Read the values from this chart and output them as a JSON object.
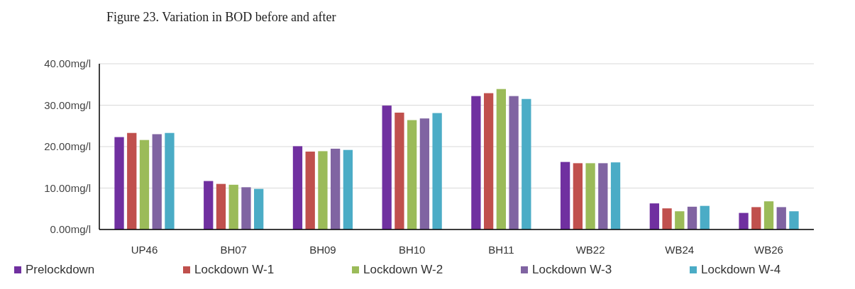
{
  "chart_data": {
    "type": "bar",
    "title": "Figure 23.   Variation in BOD before and after",
    "categories": [
      "UP46",
      "BH07",
      "BH09",
      "BH10",
      "BH11",
      "WB22",
      "WB24",
      "WB26"
    ],
    "series": [
      {
        "name": "Prelockdown",
        "color": "#7030a0",
        "values": [
          22.3,
          11.7,
          20.1,
          29.9,
          32.2,
          16.3,
          6.3,
          4.0
        ]
      },
      {
        "name": "Lockdown W-1",
        "color": "#c0504d",
        "values": [
          23.3,
          11.0,
          18.8,
          28.2,
          32.9,
          16.0,
          5.1,
          5.4
        ]
      },
      {
        "name": "Lockdown W-2",
        "color": "#9bbb59",
        "values": [
          21.6,
          10.8,
          18.9,
          26.4,
          33.9,
          16.0,
          4.4,
          6.8
        ]
      },
      {
        "name": "Lockdown W-3",
        "color": "#8064a2",
        "values": [
          23.0,
          10.2,
          19.5,
          26.8,
          32.2,
          16.0,
          5.5,
          5.4
        ]
      },
      {
        "name": "Lockdown W-4",
        "color": "#4bacc6",
        "values": [
          23.3,
          9.8,
          19.2,
          28.1,
          31.5,
          16.2,
          5.7,
          4.4
        ]
      }
    ],
    "ylim": [
      0,
      40
    ],
    "yticks": [
      {
        "value": 0,
        "label": "0.00mg/l"
      },
      {
        "value": 10,
        "label": "10.00mg/l"
      },
      {
        "value": 20,
        "label": "20.00mg/l"
      },
      {
        "value": 30,
        "label": "30.00mg/l"
      },
      {
        "value": 40,
        "label": "40.00mg/l"
      }
    ],
    "grid": "y",
    "legend": "bottom"
  }
}
